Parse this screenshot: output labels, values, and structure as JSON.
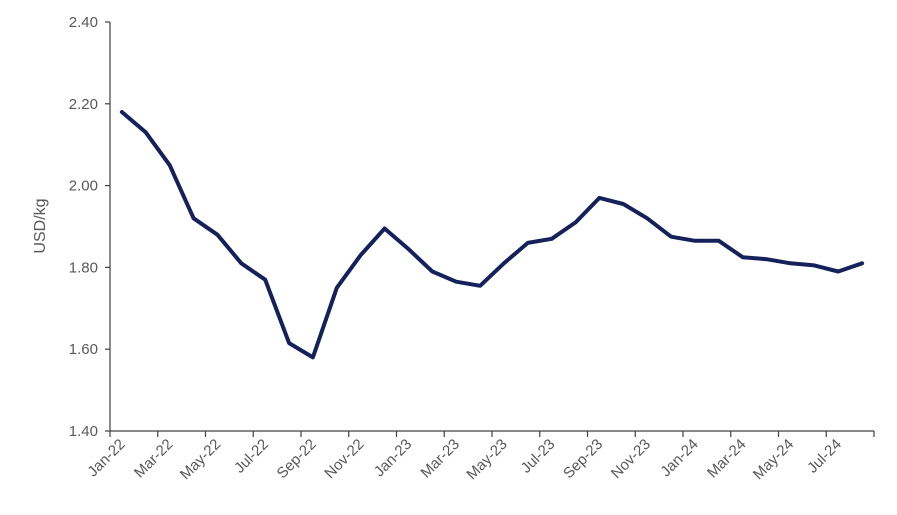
{
  "chart_data": {
    "type": "line",
    "title": "",
    "xlabel": "",
    "ylabel": "USD/kg",
    "ylim": [
      1.4,
      2.4
    ],
    "yticks": [
      "1.40",
      "1.60",
      "1.80",
      "2.00",
      "2.20",
      "2.40"
    ],
    "grid": false,
    "legend": "none",
    "x": [
      "Jan-22",
      "Feb-22",
      "Mar-22",
      "Apr-22",
      "May-22",
      "Jun-22",
      "Jul-22",
      "Aug-22",
      "Sep-22",
      "Oct-22",
      "Nov-22",
      "Dec-22",
      "Jan-23",
      "Feb-23",
      "Mar-23",
      "Apr-23",
      "May-23",
      "Jun-23",
      "Jul-23",
      "Aug-23",
      "Sep-23",
      "Oct-23",
      "Nov-23",
      "Dec-23",
      "Jan-24",
      "Feb-24",
      "Mar-24",
      "Apr-24",
      "May-24",
      "Jun-24",
      "Jul-24",
      "Aug-24"
    ],
    "xtick_labels": [
      "Jan-22",
      "Mar-22",
      "May-22",
      "Jul-22",
      "Sep-22",
      "Nov-22",
      "Jan-23",
      "Mar-23",
      "May-23",
      "Jul-23",
      "Sep-23",
      "Nov-23",
      "Jan-24",
      "Mar-24",
      "May-24",
      "Jul-24"
    ],
    "series": [
      {
        "values": [
          2.18,
          2.13,
          2.05,
          1.92,
          1.88,
          1.81,
          1.77,
          1.615,
          1.58,
          1.75,
          1.83,
          1.895,
          1.845,
          1.79,
          1.765,
          1.755,
          1.81,
          1.86,
          1.87,
          1.91,
          1.97,
          1.955,
          1.92,
          1.875,
          1.865,
          1.865,
          1.825,
          1.82,
          1.81,
          1.805,
          1.79,
          1.81
        ],
        "color": "#14215a"
      }
    ]
  }
}
